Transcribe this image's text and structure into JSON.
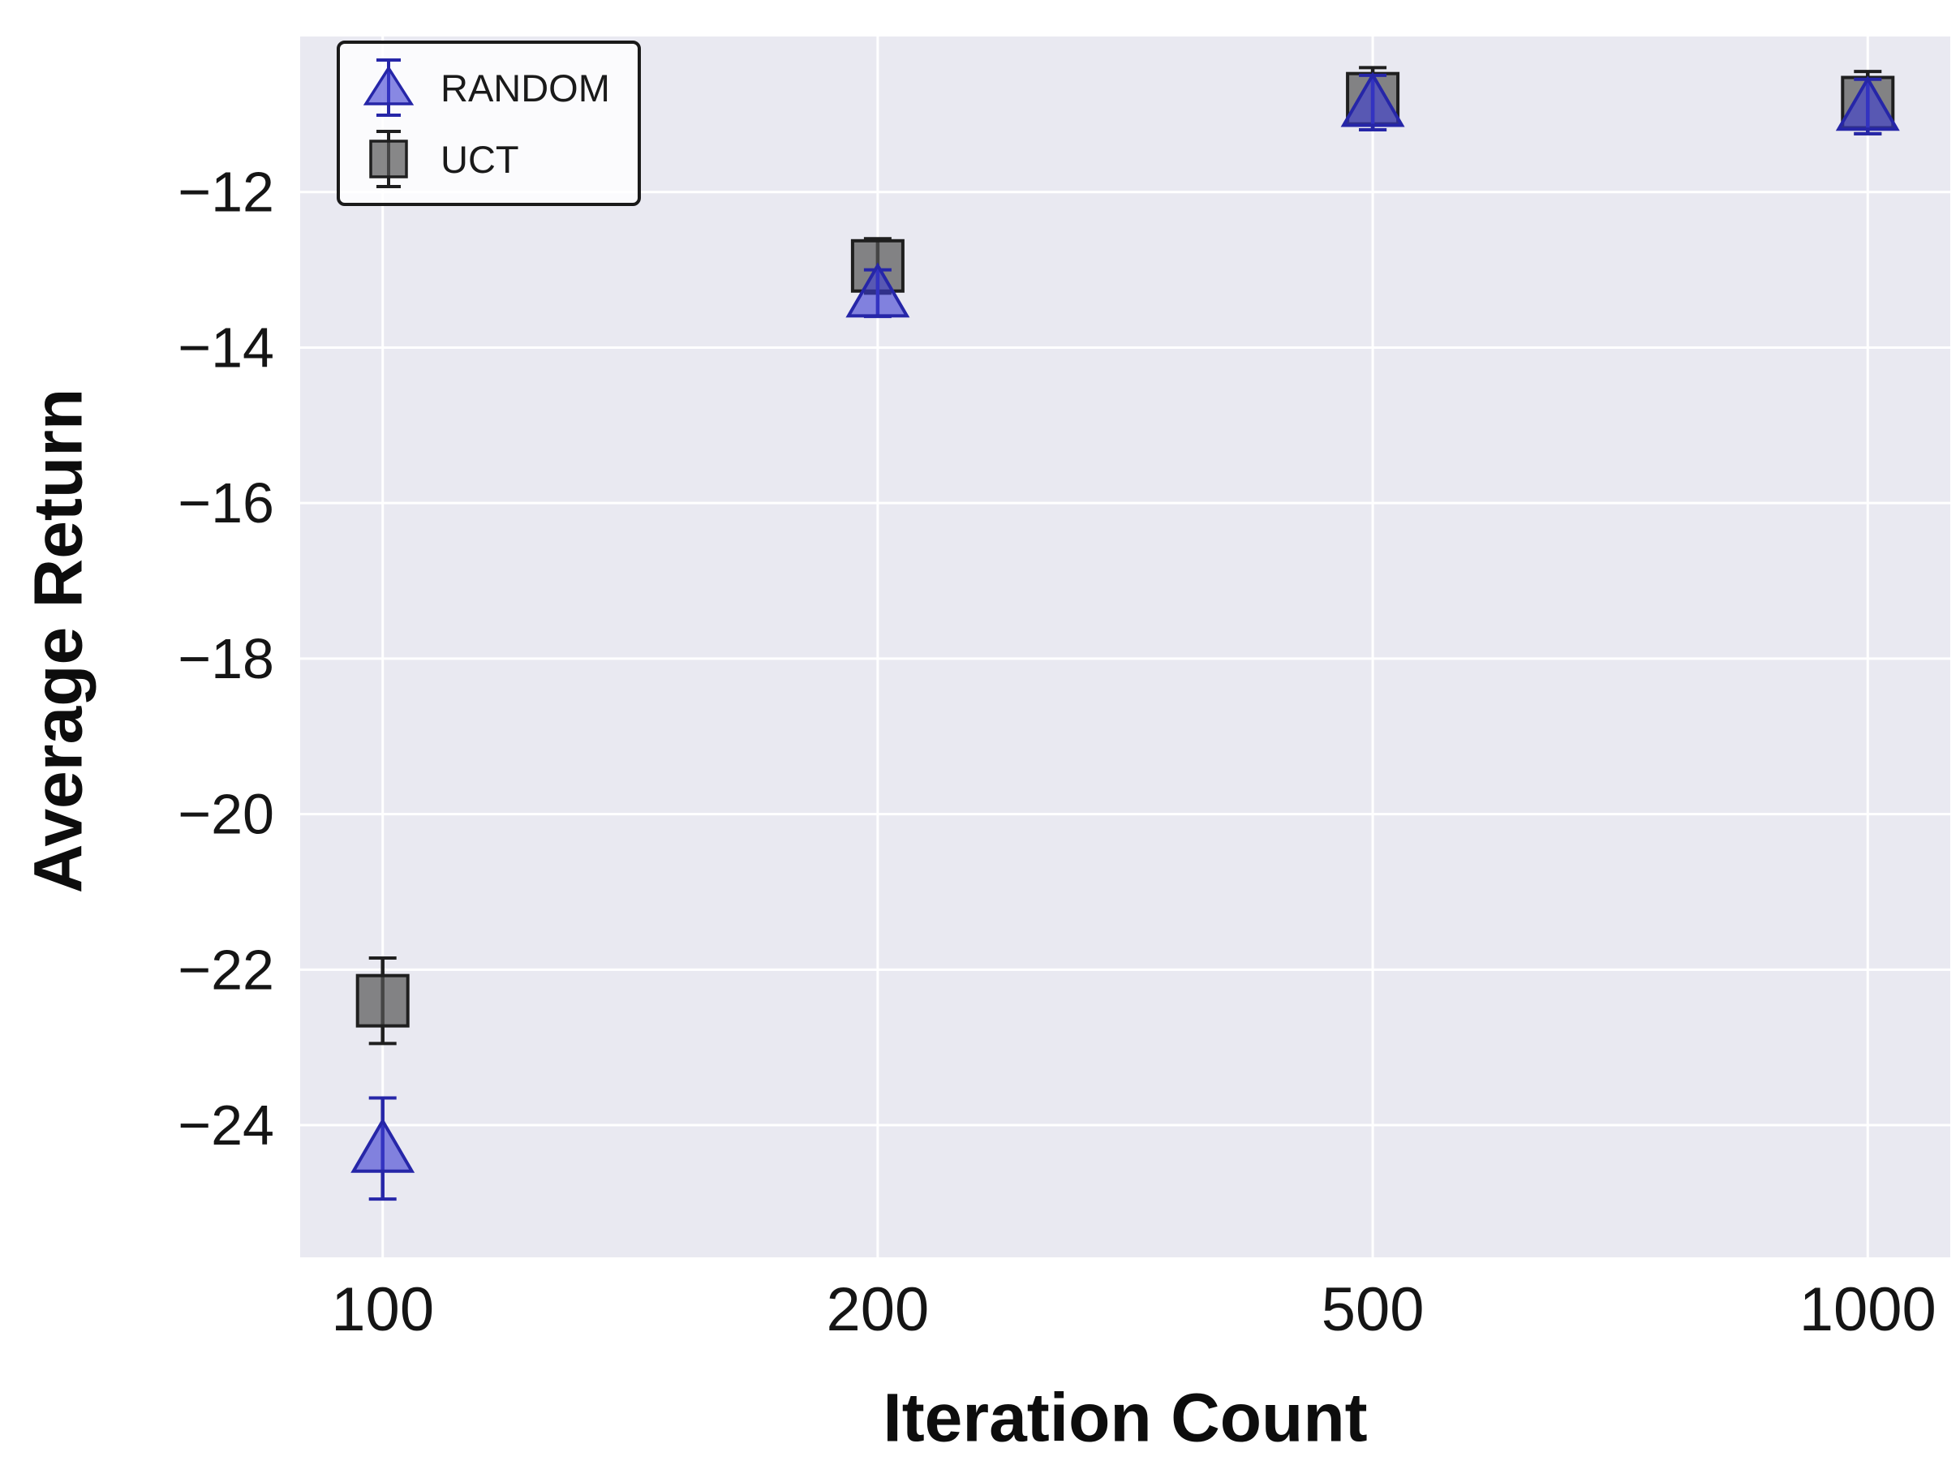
{
  "chart_data": {
    "type": "scatter",
    "title": "",
    "xlabel": "Iteration Count",
    "ylabel": "Average Return",
    "x_categories": [
      "100",
      "200",
      "500",
      "1000"
    ],
    "ytick_values": [
      -12,
      -14,
      -16,
      -18,
      -20,
      -22,
      -24
    ],
    "ytick_labels": [
      "−12",
      "−14",
      "−16",
      "−18",
      "−20",
      "−22",
      "−24"
    ],
    "ylim": [
      -25.7,
      -10.0
    ],
    "grid": true,
    "legend_position": "upper left",
    "background_color": "#e9e9f1",
    "gridline_color": "#ffffff",
    "series": [
      {
        "name": "RANDOM",
        "marker": "triangle",
        "color": "#3c3cd2",
        "edge_color": "#2626a8",
        "fill": "rgba(60,60,210,0.6)",
        "values": [
          -24.3,
          -13.3,
          -10.85,
          -10.9
        ],
        "errors": [
          0.65,
          0.3,
          0.35,
          0.35
        ]
      },
      {
        "name": "UCT",
        "marker": "square",
        "color": "#555555",
        "edge_color": "#1f1f1f",
        "fill": "rgba(85,85,85,0.7)",
        "values": [
          -22.4,
          -12.95,
          -10.8,
          -10.85
        ],
        "errors": [
          0.55,
          0.35,
          0.4,
          0.4
        ]
      }
    ]
  }
}
